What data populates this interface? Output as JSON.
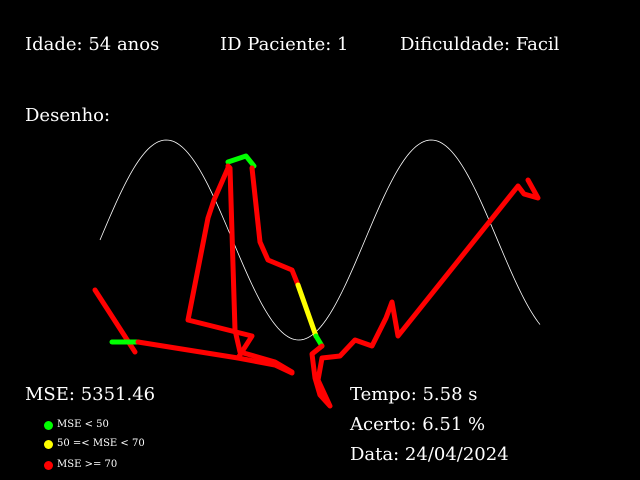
{
  "header": {
    "age": "Idade: 54 anos",
    "patient_id": "ID Paciente: 1",
    "difficulty": "Dificuldade: Facil"
  },
  "drawing_label": "Desenho:",
  "mse": "MSE: 5351.46",
  "legend": {
    "items": [
      {
        "label": "MSE < 50",
        "color": "#00ff00"
      },
      {
        "label": "50 =< MSE < 70",
        "color": "#ffff00"
      },
      {
        "label": "MSE >= 70",
        "color": "#ff0000"
      }
    ]
  },
  "stats": {
    "time": "Tempo: 5.58 s",
    "accuracy": "Acerto: 6.51 %",
    "date": "Data: 24/04/2024"
  },
  "colors": {
    "background": "#000000",
    "text": "#ffffff",
    "guide_curve": "#ffffff",
    "good": "#00ff00",
    "medium": "#ffff00",
    "bad": "#ff0000"
  }
}
